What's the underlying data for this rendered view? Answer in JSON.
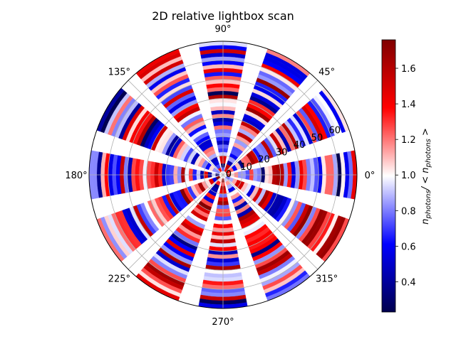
{
  "chart_data": {
    "type": "heatmap",
    "projection": "polar",
    "title": "2D relative lightbox scan",
    "theta_tick_labels": [
      "0°",
      "45°",
      "90°",
      "135°",
      "180°",
      "225°",
      "270°",
      "315°"
    ],
    "theta_ticks_deg": [
      0,
      45,
      90,
      135,
      180,
      225,
      270,
      315
    ],
    "r_tick_labels": [
      "0",
      "10",
      "20",
      "30",
      "40",
      "50",
      "60"
    ],
    "r_ticks": [
      0,
      10,
      20,
      30,
      40,
      50,
      60
    ],
    "rlim": [
      0,
      70
    ],
    "grid": true,
    "colormap": "seismic",
    "colorbar": {
      "label": "n_photons / < n_photons >",
      "label_main": "n",
      "label_sub": "photons",
      "label_mid": "/ < n",
      "label_end": ">",
      "range": [
        0.23,
        1.76
      ],
      "tick_labels": [
        "0.4",
        "0.6",
        "0.8",
        "1.0",
        "1.2",
        "1.4",
        "1.6"
      ],
      "ticks": [
        0.4,
        0.6,
        0.8,
        1.0,
        1.2,
        1.4,
        1.6
      ]
    },
    "sectors": {
      "count": 12,
      "center_angles_deg": [
        0,
        30,
        60,
        90,
        120,
        150,
        180,
        210,
        240,
        270,
        300,
        330
      ],
      "half_width_deg": 10.5,
      "ring_width": 2,
      "ring_count": 35
    }
  }
}
